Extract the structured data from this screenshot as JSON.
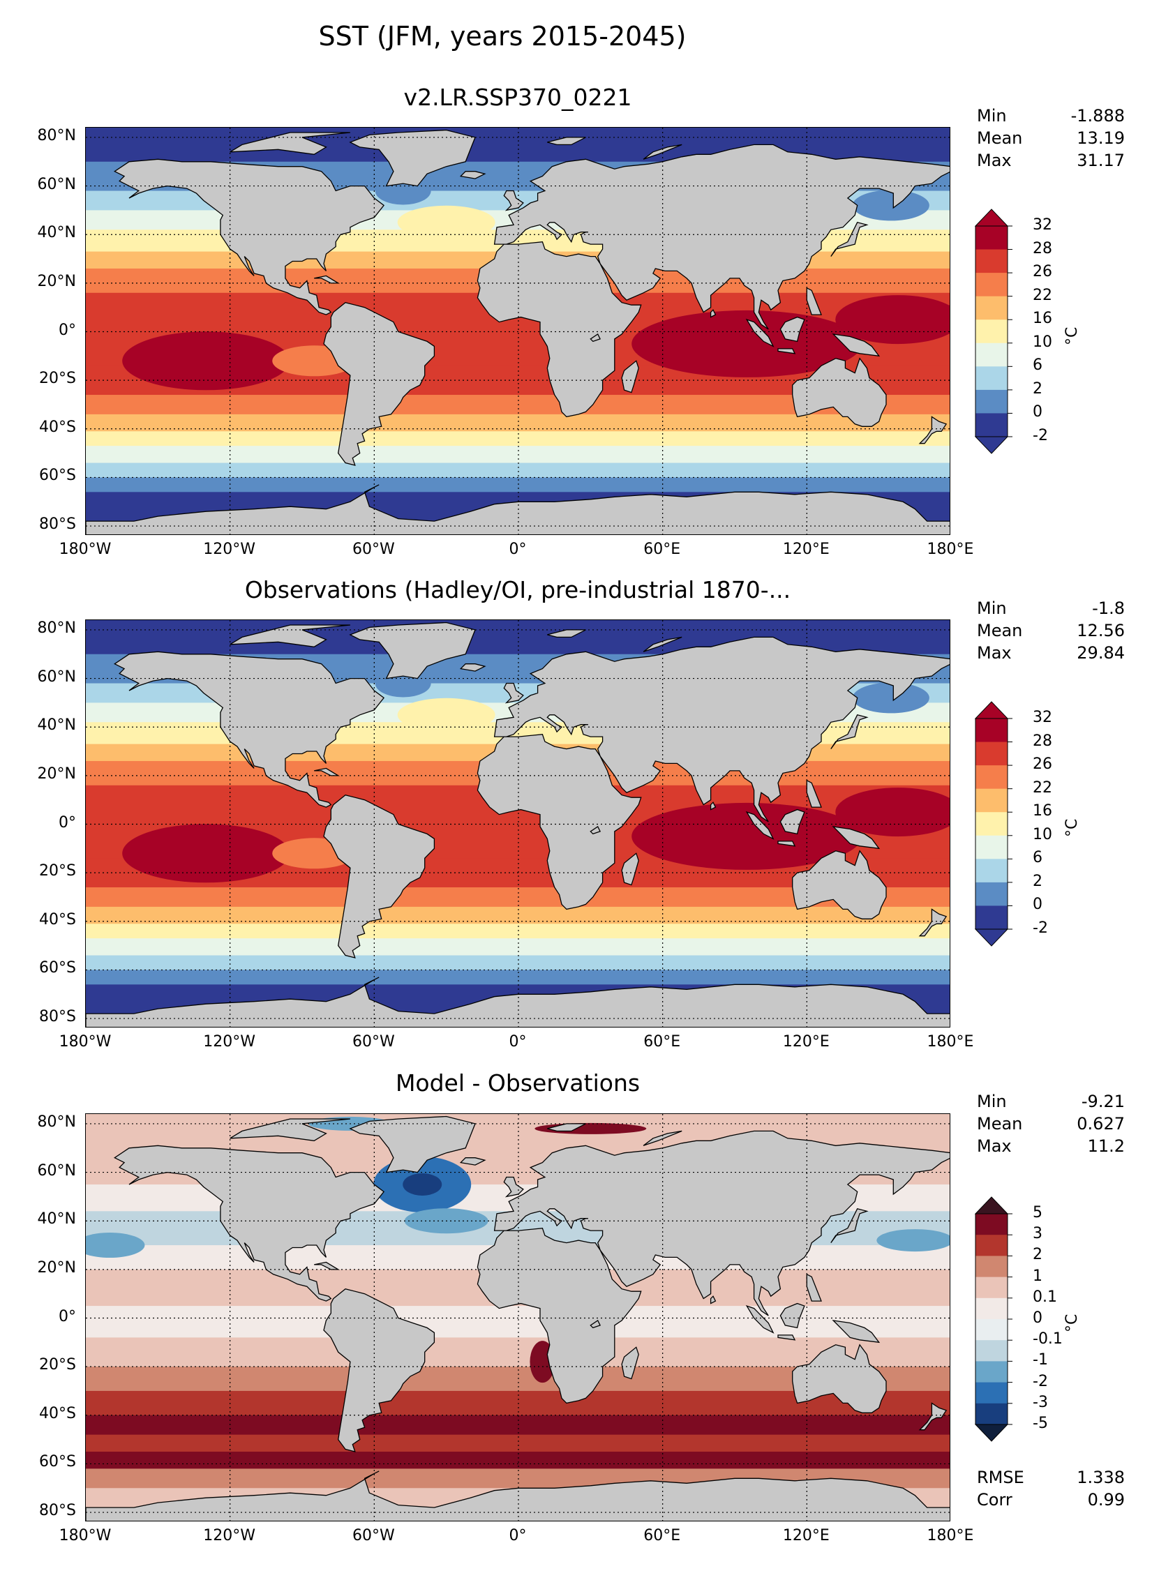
{
  "suptitle": "SST (JFM, years 2015-2045)",
  "lat_ticks": [
    "80°N",
    "60°N",
    "40°N",
    "20°N",
    "0°",
    "20°S",
    "40°S",
    "60°S",
    "80°S"
  ],
  "lon_ticks": [
    "180°W",
    "120°W",
    "60°W",
    "0°",
    "60°E",
    "120°E",
    "180°E"
  ],
  "panels": [
    {
      "title": "v2.LR.SSP370_0221",
      "stats": [
        {
          "label": "Min",
          "value": "-1.888"
        },
        {
          "label": "Mean",
          "value": "13.19"
        },
        {
          "label": "Max",
          "value": "31.17"
        }
      ],
      "colorbar": {
        "unit": "°C",
        "ticks": [
          "32",
          "28",
          "26",
          "22",
          "16",
          "10",
          "6",
          "2",
          "0",
          "-2"
        ],
        "colors": [
          "#2f3a92",
          "#5b8cc4",
          "#abd6e8",
          "#e8f5e9",
          "#fff2ac",
          "#fdbd6c",
          "#f57e4b",
          "#d93b2e",
          "#a70226"
        ],
        "extend_top": "#a70226",
        "extend_bottom": "#2f3a92"
      },
      "pattern": "model"
    },
    {
      "title": "Observations (Hadley/OI, pre-industrial 1870-...",
      "stats": [
        {
          "label": "Min",
          "value": "-1.8"
        },
        {
          "label": "Mean",
          "value": "12.56"
        },
        {
          "label": "Max",
          "value": "29.84"
        }
      ],
      "colorbar": {
        "unit": "°C",
        "ticks": [
          "32",
          "28",
          "26",
          "22",
          "16",
          "10",
          "6",
          "2",
          "0",
          "-2"
        ],
        "colors": [
          "#2f3a92",
          "#5b8cc4",
          "#abd6e8",
          "#e8f5e9",
          "#fff2ac",
          "#fdbd6c",
          "#f57e4b",
          "#d93b2e",
          "#a70226"
        ],
        "extend_top": "#a70226",
        "extend_bottom": "#2f3a92"
      },
      "pattern": "obs"
    },
    {
      "title": "Model - Observations",
      "stats": [
        {
          "label": "Min",
          "value": "-9.21"
        },
        {
          "label": "Mean",
          "value": "0.627"
        },
        {
          "label": "Max",
          "value": "11.2"
        }
      ],
      "colorbar": {
        "unit": "°C",
        "ticks": [
          "5",
          "3",
          "2",
          "1",
          "0.1",
          "0",
          "-0.1",
          "-1",
          "-2",
          "-3",
          "-5"
        ],
        "colors": [
          "#183e7e",
          "#2c70b4",
          "#6aa6c9",
          "#bfd5df",
          "#e9eef0",
          "#f2eae7",
          "#eac4b8",
          "#d08770",
          "#b3362d",
          "#7d0b22"
        ],
        "extend_top": "#3a1420",
        "extend_bottom": "#0f1f3c"
      },
      "pattern": "diff",
      "extra_stats": [
        {
          "label": "RMSE",
          "value": "1.338"
        },
        {
          "label": "Corr",
          "value": "0.99"
        }
      ]
    }
  ],
  "land_color": "#c8c8c8"
}
